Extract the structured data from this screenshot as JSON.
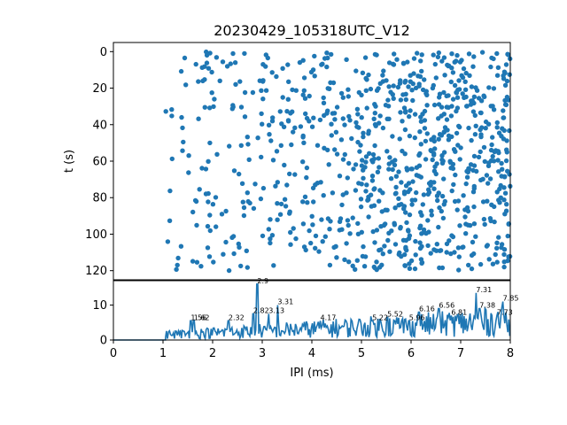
{
  "title": "20230429_105318UTC_V12",
  "chart_data": [
    {
      "type": "scatter",
      "ylabel": "t (s)",
      "xlim": [
        0,
        8
      ],
      "ylim": [
        125,
        -5
      ],
      "y_inverted": true,
      "yticks": [
        "0",
        "20",
        "40",
        "60",
        "80",
        "100",
        "120"
      ],
      "color": "#1f77b4",
      "description_density": "IPI values spread between ~1.0 and 8.0 ms over t = 0..120 s",
      "seed": 12
    },
    {
      "type": "line",
      "xlabel": "IPI (ms)",
      "xlim": [
        0,
        8
      ],
      "ylim": [
        0,
        17
      ],
      "xticks": [
        "0",
        "1",
        "2",
        "3",
        "4",
        "5",
        "6",
        "7",
        "8"
      ],
      "yticks": [
        "0",
        "10"
      ],
      "color": "#1f77b4",
      "peaks": [
        {
          "x": 1.56,
          "y": 5.5,
          "label": "1.56"
        },
        {
          "x": 1.62,
          "y": 5.5,
          "label": "1.62"
        },
        {
          "x": 2.32,
          "y": 5.5,
          "label": "2.32"
        },
        {
          "x": 2.82,
          "y": 7.5,
          "label": "2.82"
        },
        {
          "x": 2.9,
          "y": 16,
          "label": "2.9"
        },
        {
          "x": 3.13,
          "y": 7.5,
          "label": "3.13"
        },
        {
          "x": 3.31,
          "y": 10,
          "label": "3.31"
        },
        {
          "x": 4.17,
          "y": 5.5,
          "label": "4.17"
        },
        {
          "x": 5.22,
          "y": 5.5,
          "label": "5.22"
        },
        {
          "x": 5.52,
          "y": 6.5,
          "label": "5.52"
        },
        {
          "x": 5.96,
          "y": 5.5,
          "label": "5.96"
        },
        {
          "x": 6.16,
          "y": 8,
          "label": "6.16"
        },
        {
          "x": 6.56,
          "y": 9,
          "label": "6.56"
        },
        {
          "x": 6.81,
          "y": 7,
          "label": "6.81"
        },
        {
          "x": 7.31,
          "y": 13.5,
          "label": "7.31"
        },
        {
          "x": 7.38,
          "y": 9,
          "label": "7.38"
        },
        {
          "x": 7.73,
          "y": 7,
          "label": "7.73"
        },
        {
          "x": 7.85,
          "y": 11,
          "label": "7.85"
        }
      ]
    }
  ]
}
